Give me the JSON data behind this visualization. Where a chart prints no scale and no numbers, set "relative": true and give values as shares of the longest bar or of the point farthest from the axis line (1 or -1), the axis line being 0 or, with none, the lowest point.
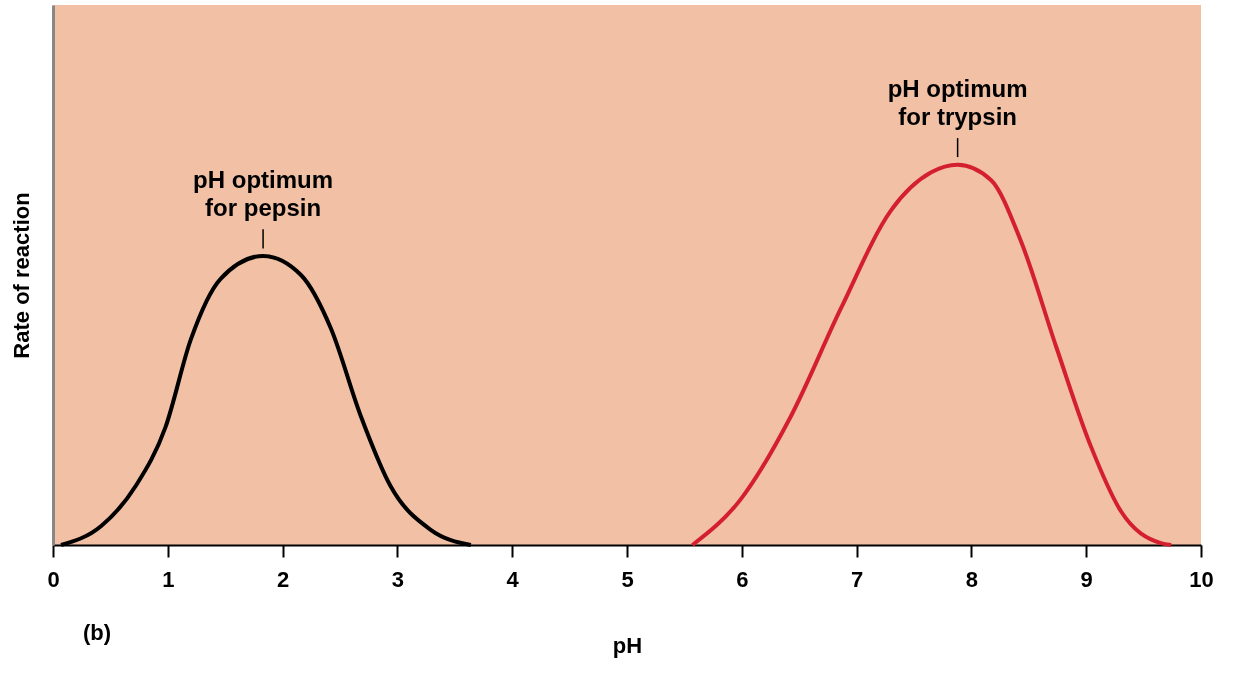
{
  "chart_data": {
    "type": "line",
    "xlabel": "pH",
    "ylabel": "Rate of reaction",
    "relative": true,
    "xlim": [
      0,
      10
    ],
    "xticks": [
      0,
      1,
      2,
      3,
      4,
      5,
      6,
      7,
      8,
      9,
      10
    ],
    "grid": false,
    "legend": false,
    "marker": "none",
    "line_style": "solid",
    "series": [
      {
        "color": "#000000",
        "x": [
          0.07,
          0.42,
          0.72,
          0.98,
          1.2,
          1.46,
          1.83,
          2.16,
          2.42,
          2.68,
          2.94,
          3.29,
          3.64
        ],
        "values": [
          0,
          0.05,
          0.155,
          0.31,
          0.54,
          0.7,
          0.76,
          0.71,
          0.57,
          0.34,
          0.155,
          0.04,
          0
        ]
      },
      {
        "color": "#d4202e",
        "x": [
          5.57,
          5.99,
          6.43,
          6.86,
          7.3,
          7.65,
          7.88,
          8.17,
          8.43,
          8.74,
          9.04,
          9.3,
          9.65,
          9.74
        ],
        "values": [
          0,
          0.12,
          0.34,
          0.62,
          0.88,
          0.98,
          1.0,
          0.96,
          0.8,
          0.52,
          0.26,
          0.09,
          0.005,
          0
        ]
      }
    ],
    "annotations": [
      {
        "text": "pH optimum\nfor pepsin",
        "x": 1.83,
        "y": 0.76
      },
      {
        "text": "pH optimum\nfor trypsin",
        "x": 7.88,
        "y": 1.0
      },
      "(b)"
    ]
  }
}
